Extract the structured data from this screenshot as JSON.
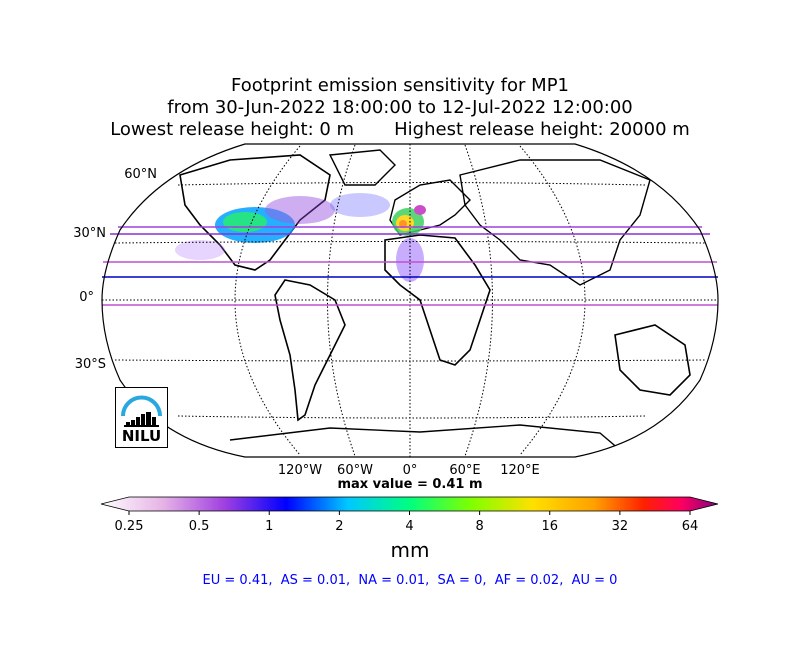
{
  "title": {
    "line1": "Footprint emission sensitivity for MP1",
    "line2": "from 30-Jun-2022 18:00:00 to 12-Jul-2022 12:00:00",
    "line3": "Lowest release height: 0 m       Highest release height: 20000 m"
  },
  "map": {
    "projection": "robinson",
    "lat_labels": [
      "60°N",
      "30°N",
      "0°",
      "30°S"
    ],
    "lon_labels": [
      "120°W",
      "60°W",
      "0°",
      "60°E",
      "120°E"
    ],
    "hotspot_region": "Europe (Iberia / France)",
    "logo_text": "NILU"
  },
  "max_value_label": "max value = 0.41 m",
  "colorbar": {
    "ticks": [
      "0.25",
      "0.5",
      "1",
      "2",
      "4",
      "8",
      "16",
      "32",
      "64"
    ],
    "unit": "mm",
    "colors": [
      "#ffffff",
      "#e6b3e6",
      "#a040e0",
      "#0000ff",
      "#00c8ff",
      "#00ff80",
      "#80ff00",
      "#ffe000",
      "#ffa000",
      "#ff2000",
      "#ff0060",
      "#800080"
    ]
  },
  "region_stats": "EU = 0.41,  AS = 0.01,  NA = 0.01,  SA = 0,  AF = 0.02,  AU = 0"
}
